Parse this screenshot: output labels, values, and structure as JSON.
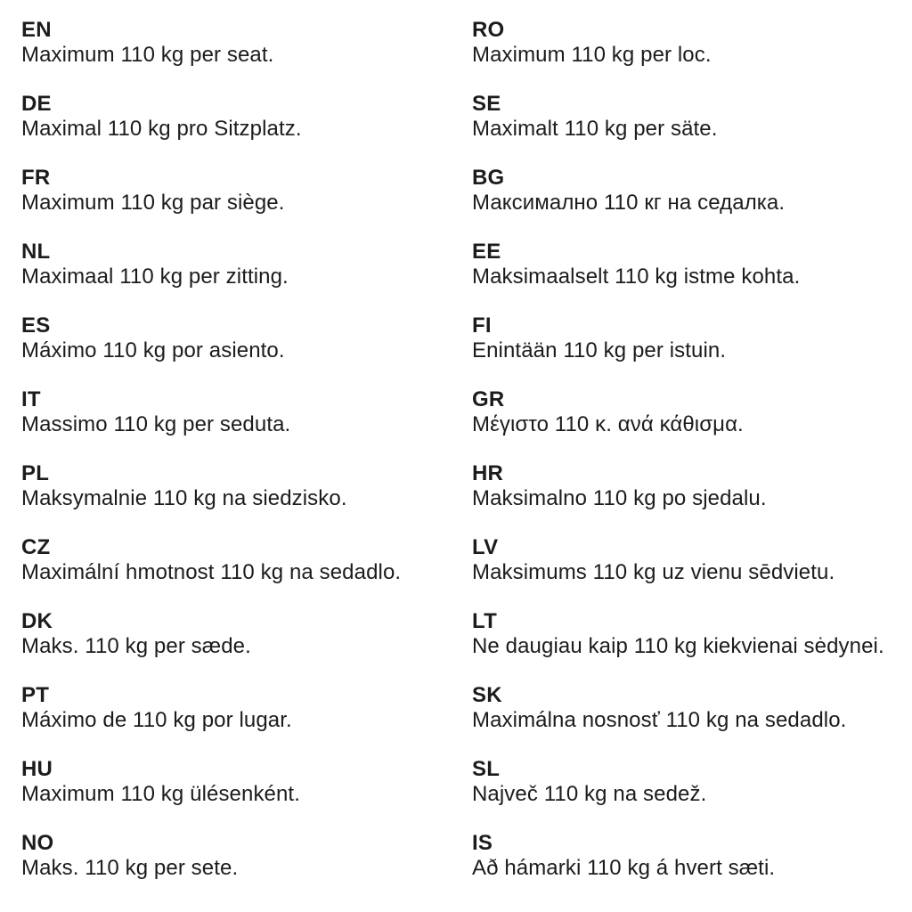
{
  "page": {
    "background_color": "#ffffff",
    "text_color": "#1c1c1c",
    "shared_value": "110 kg"
  },
  "translations": {
    "columns": [
      {
        "items": [
          {
            "code": "EN",
            "text": "Maximum 110 kg per seat."
          },
          {
            "code": "DE",
            "text": "Maximal 110 kg pro Sitzplatz."
          },
          {
            "code": "FR",
            "text": "Maximum 110 kg par siège."
          },
          {
            "code": "NL",
            "text": "Maximaal 110 kg per zitting."
          },
          {
            "code": "ES",
            "text": "Máximo 110 kg por asiento."
          },
          {
            "code": "IT",
            "text": "Massimo 110 kg per seduta."
          },
          {
            "code": "PL",
            "text": "Maksymalnie 110 kg na siedzisko."
          },
          {
            "code": "CZ",
            "text": "Maximální hmotnost 110 kg na sedadlo."
          },
          {
            "code": "DK",
            "text": "Maks. 110 kg per sæde."
          },
          {
            "code": "PT",
            "text": "Máximo de 110 kg por lugar."
          },
          {
            "code": "HU",
            "text": "Maximum 110 kg ülésenként."
          },
          {
            "code": "NO",
            "text": "Maks. 110 kg per sete."
          }
        ]
      },
      {
        "items": [
          {
            "code": "RO",
            "text": "Maximum 110 kg per loc."
          },
          {
            "code": "SE",
            "text": "Maximalt 110 kg per säte."
          },
          {
            "code": "BG",
            "text": "Максимално 110 кг на седалка."
          },
          {
            "code": "EE",
            "text": "Maksimaalselt 110 kg istme kohta."
          },
          {
            "code": "FI",
            "text": "Enintään 110 kg per istuin."
          },
          {
            "code": "GR",
            "text": "Μέγιστο 110 κ. ανά κάθισμα."
          },
          {
            "code": "HR",
            "text": "Maksimalno 110 kg po sjedalu."
          },
          {
            "code": "LV",
            "text": "Maksimums 110 kg uz vienu sēdvietu."
          },
          {
            "code": "LT",
            "text": "Ne daugiau kaip 110 kg kiekvienai sėdynei."
          },
          {
            "code": "SK",
            "text": "Maximálna nosnosť 110 kg na sedadlo."
          },
          {
            "code": "SL",
            "text": "Največ 110 kg na sedež."
          },
          {
            "code": "IS",
            "text": "Að hámarki 110 kg á hvert sæti."
          }
        ]
      }
    ]
  }
}
